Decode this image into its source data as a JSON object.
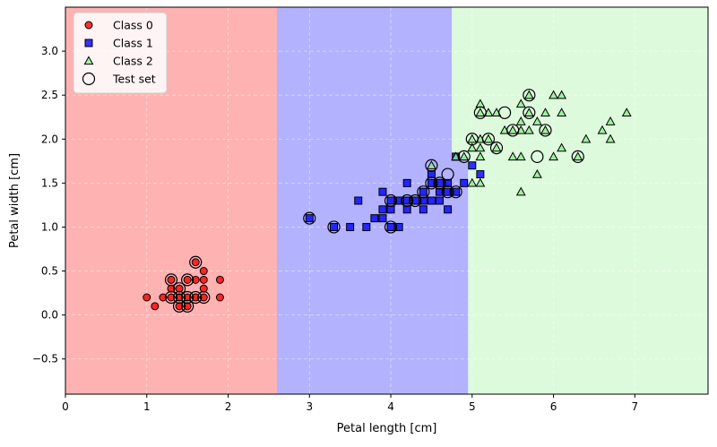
{
  "chart_data": {
    "type": "scatter",
    "title": "",
    "xlabel": "Petal length [cm]",
    "ylabel": "Petal width [cm]",
    "xlim": [
      0,
      7.9
    ],
    "ylim": [
      -0.9,
      3.5
    ],
    "xticks": [
      0,
      1,
      2,
      3,
      4,
      5,
      6,
      7
    ],
    "yticks": [
      -0.5,
      0.0,
      0.5,
      1.0,
      1.5,
      2.0,
      2.5,
      3.0
    ],
    "ytick_labels": [
      "−0.5",
      "0.0",
      "0.5",
      "1.0",
      "1.5",
      "2.0",
      "2.5",
      "3.0"
    ],
    "grid": true,
    "legend_position": "top-left",
    "decision_regions": [
      {
        "class": "Class 0",
        "color": "#ff0000",
        "x_from": 0.0,
        "x_to": 2.6
      },
      {
        "class": "Class 1",
        "color": "#0000ff",
        "x_from": 2.6,
        "x_to": 4.75
      },
      {
        "class": "Class 1",
        "color": "#0000ff",
        "x_from": 4.75,
        "x_to": 4.95,
        "y_from": -0.9,
        "y_to": 1.8
      },
      {
        "class": "Class 2",
        "color": "#90ee90",
        "x_from": 4.75,
        "x_to": 7.9,
        "y_from": 1.8,
        "y_to": 3.5
      },
      {
        "class": "Class 2",
        "color": "#90ee90",
        "x_from": 4.95,
        "x_to": 7.9,
        "y_from": -0.9,
        "y_to": 1.8
      }
    ],
    "series": [
      {
        "name": "Class 0",
        "marker": "circle",
        "color": "#ff0000",
        "points": [
          [
            1.0,
            0.2
          ],
          [
            1.1,
            0.1
          ],
          [
            1.2,
            0.2
          ],
          [
            1.3,
            0.2
          ],
          [
            1.3,
            0.3
          ],
          [
            1.3,
            0.4
          ],
          [
            1.4,
            0.1
          ],
          [
            1.4,
            0.2
          ],
          [
            1.4,
            0.3
          ],
          [
            1.5,
            0.1
          ],
          [
            1.5,
            0.2
          ],
          [
            1.5,
            0.4
          ],
          [
            1.6,
            0.2
          ],
          [
            1.6,
            0.4
          ],
          [
            1.6,
            0.6
          ],
          [
            1.7,
            0.2
          ],
          [
            1.7,
            0.3
          ],
          [
            1.7,
            0.4
          ],
          [
            1.7,
            0.5
          ],
          [
            1.9,
            0.2
          ],
          [
            1.9,
            0.4
          ]
        ]
      },
      {
        "name": "Class 1",
        "marker": "square",
        "color": "#0000ff",
        "points": [
          [
            3.0,
            1.1
          ],
          [
            3.3,
            1.0
          ],
          [
            3.5,
            1.0
          ],
          [
            3.6,
            1.3
          ],
          [
            3.7,
            1.0
          ],
          [
            3.8,
            1.1
          ],
          [
            3.9,
            1.1
          ],
          [
            3.9,
            1.2
          ],
          [
            3.9,
            1.4
          ],
          [
            4.0,
            1.0
          ],
          [
            4.0,
            1.2
          ],
          [
            4.0,
            1.3
          ],
          [
            4.1,
            1.0
          ],
          [
            4.1,
            1.3
          ],
          [
            4.2,
            1.2
          ],
          [
            4.2,
            1.3
          ],
          [
            4.2,
            1.5
          ],
          [
            4.3,
            1.3
          ],
          [
            4.4,
            1.2
          ],
          [
            4.4,
            1.3
          ],
          [
            4.4,
            1.4
          ],
          [
            4.5,
            1.3
          ],
          [
            4.5,
            1.5
          ],
          [
            4.5,
            1.6
          ],
          [
            4.6,
            1.3
          ],
          [
            4.6,
            1.4
          ],
          [
            4.6,
            1.5
          ],
          [
            4.7,
            1.2
          ],
          [
            4.7,
            1.4
          ],
          [
            4.7,
            1.5
          ],
          [
            4.8,
            1.4
          ],
          [
            4.8,
            1.8
          ],
          [
            4.9,
            1.5
          ],
          [
            5.0,
            1.7
          ],
          [
            5.1,
            1.6
          ]
        ]
      },
      {
        "name": "Class 2",
        "marker": "triangle",
        "color": "#90ee90",
        "points": [
          [
            4.5,
            1.7
          ],
          [
            4.8,
            1.8
          ],
          [
            4.9,
            1.8
          ],
          [
            5.0,
            1.5
          ],
          [
            5.0,
            1.9
          ],
          [
            5.0,
            2.0
          ],
          [
            5.1,
            1.5
          ],
          [
            5.1,
            1.8
          ],
          [
            5.1,
            1.9
          ],
          [
            5.1,
            2.0
          ],
          [
            5.1,
            2.3
          ],
          [
            5.1,
            2.4
          ],
          [
            5.2,
            2.0
          ],
          [
            5.2,
            2.3
          ],
          [
            5.3,
            1.9
          ],
          [
            5.3,
            2.3
          ],
          [
            5.4,
            2.1
          ],
          [
            5.5,
            1.8
          ],
          [
            5.5,
            2.1
          ],
          [
            5.6,
            1.4
          ],
          [
            5.6,
            1.8
          ],
          [
            5.6,
            2.1
          ],
          [
            5.6,
            2.2
          ],
          [
            5.6,
            2.4
          ],
          [
            5.7,
            2.1
          ],
          [
            5.7,
            2.3
          ],
          [
            5.7,
            2.5
          ],
          [
            5.8,
            1.6
          ],
          [
            5.8,
            2.2
          ],
          [
            5.9,
            2.1
          ],
          [
            5.9,
            2.3
          ],
          [
            6.0,
            1.8
          ],
          [
            6.0,
            2.5
          ],
          [
            6.1,
            1.9
          ],
          [
            6.1,
            2.3
          ],
          [
            6.1,
            2.5
          ],
          [
            6.3,
            1.8
          ],
          [
            6.4,
            2.0
          ],
          [
            6.6,
            2.1
          ],
          [
            6.7,
            2.0
          ],
          [
            6.7,
            2.2
          ],
          [
            6.9,
            2.3
          ]
        ]
      },
      {
        "name": "Test set",
        "marker": "hollow-circle",
        "color": "#000000",
        "points": [
          [
            3.0,
            1.1
          ],
          [
            3.3,
            1.0
          ],
          [
            4.0,
            1.0
          ],
          [
            4.0,
            1.3
          ],
          [
            4.2,
            1.3
          ],
          [
            4.3,
            1.3
          ],
          [
            4.4,
            1.4
          ],
          [
            4.5,
            1.5
          ],
          [
            4.5,
            1.7
          ],
          [
            4.6,
            1.5
          ],
          [
            4.7,
            1.4
          ],
          [
            4.7,
            1.6
          ],
          [
            4.8,
            1.4
          ],
          [
            4.9,
            1.8
          ],
          [
            5.0,
            2.0
          ],
          [
            5.1,
            2.3
          ],
          [
            5.2,
            2.0
          ],
          [
            5.3,
            1.9
          ],
          [
            5.4,
            2.3
          ],
          [
            5.5,
            2.1
          ],
          [
            5.7,
            2.3
          ],
          [
            5.7,
            2.5
          ],
          [
            5.8,
            1.8
          ],
          [
            5.9,
            2.1
          ],
          [
            6.3,
            1.8
          ],
          [
            1.3,
            0.2
          ],
          [
            1.3,
            0.4
          ],
          [
            1.4,
            0.2
          ],
          [
            1.4,
            0.3
          ],
          [
            1.4,
            0.1
          ],
          [
            1.5,
            0.1
          ],
          [
            1.5,
            0.2
          ],
          [
            1.5,
            0.4
          ],
          [
            1.6,
            0.2
          ],
          [
            1.6,
            0.6
          ],
          [
            1.7,
            0.2
          ]
        ]
      }
    ],
    "legend": [
      {
        "label": "Class 0",
        "marker": "circle",
        "color": "#ff0000"
      },
      {
        "label": "Class 1",
        "marker": "square",
        "color": "#0000ff"
      },
      {
        "label": "Class 2",
        "marker": "triangle",
        "color": "#90ee90"
      },
      {
        "label": "Test set",
        "marker": "hollow-circle",
        "color": "#000000"
      }
    ]
  }
}
